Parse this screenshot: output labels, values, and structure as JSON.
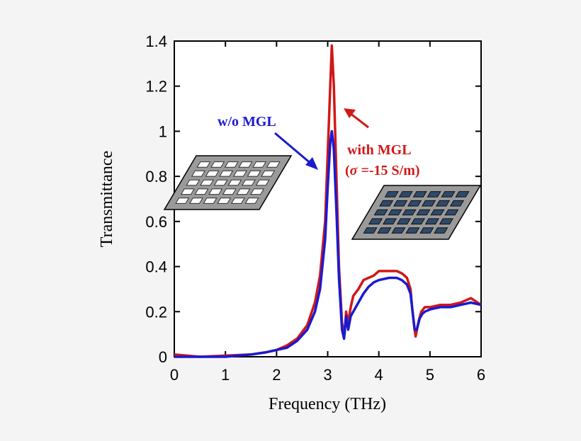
{
  "chart_data": {
    "type": "line",
    "xlabel": "Frequency (THz)",
    "ylabel": "Transmittance",
    "xlim": [
      0,
      6
    ],
    "ylim": [
      0,
      1.4
    ],
    "xticks": [
      "0",
      "1",
      "2",
      "3",
      "4",
      "5",
      "6"
    ],
    "yticks": [
      "0",
      "0.2",
      "0.4",
      "0.6",
      "0.8",
      "1",
      "1.2",
      "1.4"
    ],
    "grid": false,
    "series": [
      {
        "name": "with MGL",
        "color": "#d01818",
        "points": [
          [
            0,
            0.01
          ],
          [
            0.5,
            0.0
          ],
          [
            1.0,
            0.005
          ],
          [
            1.5,
            0.01
          ],
          [
            1.8,
            0.02
          ],
          [
            2.0,
            0.03
          ],
          [
            2.2,
            0.05
          ],
          [
            2.4,
            0.08
          ],
          [
            2.6,
            0.14
          ],
          [
            2.75,
            0.24
          ],
          [
            2.85,
            0.36
          ],
          [
            2.95,
            0.6
          ],
          [
            3.0,
            0.9
          ],
          [
            3.05,
            1.2
          ],
          [
            3.08,
            1.38
          ],
          [
            3.12,
            1.2
          ],
          [
            3.17,
            0.8
          ],
          [
            3.22,
            0.4
          ],
          [
            3.28,
            0.15
          ],
          [
            3.33,
            0.1
          ],
          [
            3.36,
            0.2
          ],
          [
            3.4,
            0.15
          ],
          [
            3.45,
            0.22
          ],
          [
            3.5,
            0.27
          ],
          [
            3.6,
            0.3
          ],
          [
            3.7,
            0.34
          ],
          [
            3.8,
            0.35
          ],
          [
            3.9,
            0.36
          ],
          [
            4.0,
            0.38
          ],
          [
            4.2,
            0.38
          ],
          [
            4.35,
            0.38
          ],
          [
            4.45,
            0.37
          ],
          [
            4.55,
            0.35
          ],
          [
            4.62,
            0.3
          ],
          [
            4.65,
            0.22
          ],
          [
            4.7,
            0.12
          ],
          [
            4.72,
            0.09
          ],
          [
            4.78,
            0.16
          ],
          [
            4.83,
            0.2
          ],
          [
            4.9,
            0.22
          ],
          [
            5.0,
            0.22
          ],
          [
            5.2,
            0.23
          ],
          [
            5.4,
            0.23
          ],
          [
            5.6,
            0.24
          ],
          [
            5.8,
            0.26
          ],
          [
            6.0,
            0.23
          ]
        ]
      },
      {
        "name": "w/o MGL",
        "color": "#1a1ad0",
        "points": [
          [
            0,
            0.0
          ],
          [
            0.5,
            0.0
          ],
          [
            1.0,
            0.0
          ],
          [
            1.5,
            0.01
          ],
          [
            1.8,
            0.02
          ],
          [
            2.0,
            0.03
          ],
          [
            2.2,
            0.04
          ],
          [
            2.4,
            0.07
          ],
          [
            2.6,
            0.12
          ],
          [
            2.75,
            0.2
          ],
          [
            2.85,
            0.3
          ],
          [
            2.95,
            0.52
          ],
          [
            3.0,
            0.75
          ],
          [
            3.05,
            0.95
          ],
          [
            3.08,
            1.0
          ],
          [
            3.12,
            0.92
          ],
          [
            3.17,
            0.65
          ],
          [
            3.22,
            0.35
          ],
          [
            3.28,
            0.12
          ],
          [
            3.32,
            0.08
          ],
          [
            3.36,
            0.18
          ],
          [
            3.4,
            0.12
          ],
          [
            3.45,
            0.18
          ],
          [
            3.5,
            0.2
          ],
          [
            3.6,
            0.24
          ],
          [
            3.7,
            0.28
          ],
          [
            3.8,
            0.31
          ],
          [
            3.9,
            0.33
          ],
          [
            4.0,
            0.34
          ],
          [
            4.2,
            0.35
          ],
          [
            4.35,
            0.35
          ],
          [
            4.45,
            0.34
          ],
          [
            4.55,
            0.32
          ],
          [
            4.62,
            0.28
          ],
          [
            4.66,
            0.2
          ],
          [
            4.7,
            0.12
          ],
          [
            4.74,
            0.12
          ],
          [
            4.8,
            0.17
          ],
          [
            4.85,
            0.19
          ],
          [
            4.9,
            0.2
          ],
          [
            5.0,
            0.21
          ],
          [
            5.2,
            0.22
          ],
          [
            5.4,
            0.22
          ],
          [
            5.6,
            0.23
          ],
          [
            5.8,
            0.24
          ],
          [
            6.0,
            0.23
          ]
        ]
      }
    ],
    "annotations": [
      {
        "text": "w/o MGL",
        "color": "#1a1ad0"
      },
      {
        "text": "with MGL",
        "color": "#d01818"
      },
      {
        "text_sigma": "σ",
        "text_value": " =-15 S/m)",
        "text_open": "(",
        "color": "#d01818"
      }
    ],
    "insets": [
      "white-rectangle-array",
      "dark-blue-rectangle-array"
    ]
  }
}
